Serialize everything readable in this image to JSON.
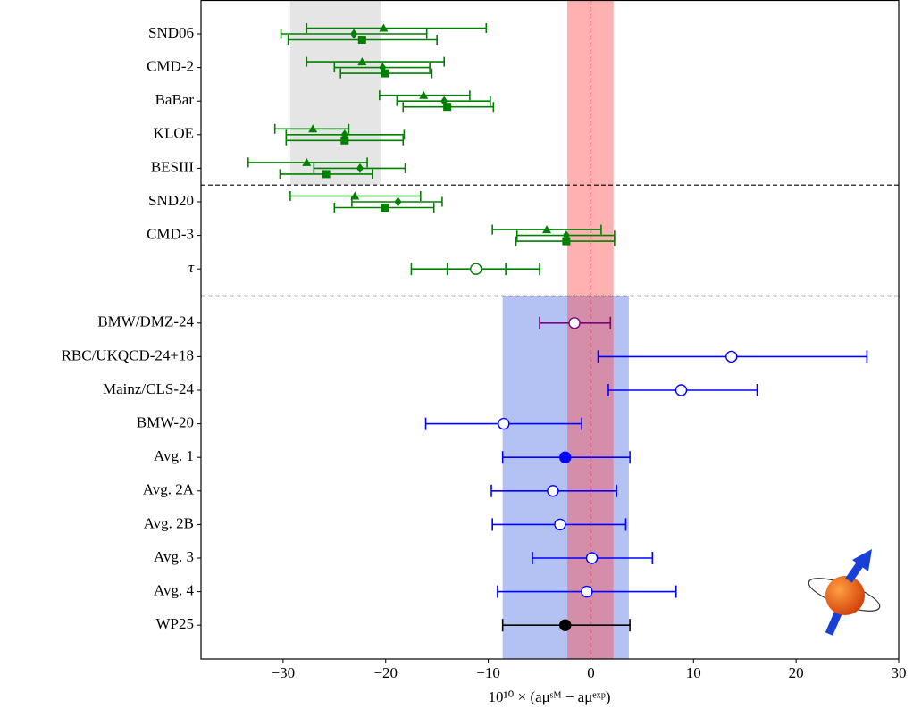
{
  "chart_data": {
    "type": "errorbar",
    "xlabel": "10¹⁰ × (aμˢᴹ − aμᵉˣᵖ)",
    "xlim": [
      -38,
      30
    ],
    "xticks": [
      {
        "value": -30,
        "label": "−30"
      },
      {
        "value": -20,
        "label": "−20"
      },
      {
        "value": -10,
        "label": "−10"
      },
      0,
      10,
      20,
      30
    ],
    "vline": 0,
    "vline_color": "#d62728",
    "separators_after": [
      4,
      7
    ],
    "categories": [
      "SND06",
      "CMD-2",
      "BaBar",
      "KLOE",
      "BESIII",
      "SND20",
      "CMD-3",
      "τ",
      "BMW/DMZ-24",
      "RBC/UKQCD-24+18",
      "Mainz/CLS-24",
      "BMW-20",
      "Avg. 1",
      "Avg. 2A",
      "Avg. 2B",
      "Avg. 3",
      "Avg. 4",
      "WP25"
    ],
    "bands": [
      {
        "range": [
          -29.3,
          -20.5
        ],
        "rows": [
          0,
          4
        ],
        "color": "#e5e5e5"
      },
      {
        "range": [
          -8.6,
          3.7
        ],
        "rows": [
          8,
          17
        ],
        "color": "#b3c2f2"
      },
      {
        "range": [
          -2.3,
          2.2
        ],
        "rows": [
          0,
          17
        ],
        "color": "rgba(255,80,80,0.45)"
      }
    ],
    "series": [
      {
        "marker": "triangle",
        "offset": -1,
        "color": "#008000",
        "values": [
          -20.2,
          -22.3,
          -16.3,
          -27.1,
          -27.7,
          -23.0,
          -4.3,
          null,
          null,
          null,
          null,
          null,
          null,
          null,
          null,
          null,
          null,
          null
        ],
        "lower": [
          -27.7,
          -27.7,
          -20.6,
          -30.8,
          -33.4,
          -29.3,
          -9.6,
          null,
          null,
          null,
          null,
          null,
          null,
          null,
          null,
          null,
          null,
          null
        ],
        "upper": [
          -10.2,
          -14.3,
          -11.8,
          -23.6,
          -21.8,
          -16.6,
          1.0,
          null,
          null,
          null,
          null,
          null,
          null,
          null,
          null,
          null,
          null,
          null
        ]
      },
      {
        "marker": "diamond",
        "offset": 0,
        "color": "#008000",
        "values": [
          -23.1,
          -20.3,
          -14.3,
          -24.0,
          -22.5,
          -18.8,
          -2.4,
          null,
          null,
          null,
          null,
          null,
          null,
          null,
          null,
          null,
          null,
          null
        ],
        "lower": [
          -30.2,
          -25.0,
          -18.9,
          -29.7,
          -27.0,
          -23.3,
          -7.2,
          null,
          null,
          null,
          null,
          null,
          null,
          null,
          null,
          null,
          null,
          null
        ],
        "upper": [
          -16.0,
          -15.7,
          -9.8,
          -18.2,
          -18.1,
          -14.5,
          2.3,
          null,
          null,
          null,
          null,
          null,
          null,
          null,
          null,
          null,
          null,
          null
        ]
      },
      {
        "marker": "square",
        "offset": 1,
        "color": "#008000",
        "values": [
          -22.3,
          -20.1,
          -14.0,
          -24.0,
          -25.8,
          -20.1,
          -2.4,
          null,
          null,
          null,
          null,
          null,
          null,
          null,
          null,
          null,
          null,
          null
        ],
        "lower": [
          -29.5,
          -24.4,
          -18.3,
          -29.7,
          -30.3,
          -25.0,
          -7.3,
          null,
          null,
          null,
          null,
          null,
          null,
          null,
          null,
          null,
          null,
          null
        ],
        "upper": [
          -15.0,
          -15.5,
          -9.5,
          -18.3,
          -21.3,
          -15.3,
          2.3,
          null,
          null,
          null,
          null,
          null,
          null,
          null,
          null,
          null,
          null,
          null
        ]
      },
      {
        "marker": "circle",
        "offset": 0,
        "values": [
          null,
          null,
          null,
          null,
          null,
          null,
          null,
          -11.2,
          -1.6,
          13.7,
          8.8,
          -8.5,
          -2.5,
          -3.7,
          -3.0,
          0.1,
          -0.4,
          -2.5
        ],
        "lower": [
          null,
          null,
          null,
          null,
          null,
          null,
          null,
          -17.5,
          -5.0,
          0.7,
          1.7,
          -16.1,
          -8.6,
          -9.7,
          -9.6,
          -5.7,
          -9.1,
          -8.6
        ],
        "upper": [
          null,
          null,
          null,
          null,
          null,
          null,
          null,
          -5.0,
          1.9,
          26.9,
          16.2,
          -0.9,
          3.8,
          2.5,
          3.4,
          6.0,
          8.3,
          3.8
        ],
        "inner_lower": [
          null,
          null,
          null,
          null,
          null,
          null,
          null,
          -14.0,
          null,
          null,
          null,
          null,
          null,
          null,
          null,
          null,
          null,
          null
        ],
        "inner_upper": [
          null,
          null,
          null,
          null,
          null,
          null,
          null,
          -8.3,
          null,
          null,
          null,
          null,
          null,
          null,
          null,
          null,
          null,
          null
        ],
        "colors": [
          null,
          null,
          null,
          null,
          null,
          null,
          null,
          "#008000",
          "#800080",
          "#0000ff",
          "#0000ff",
          "#0000ff",
          "#0000ff",
          "#0000ff",
          "#0000ff",
          "#0000ff",
          "#0000ff",
          "#000000"
        ],
        "filled": [
          null,
          null,
          null,
          null,
          null,
          null,
          null,
          false,
          false,
          false,
          false,
          false,
          true,
          false,
          false,
          false,
          false,
          true
        ]
      }
    ]
  }
}
